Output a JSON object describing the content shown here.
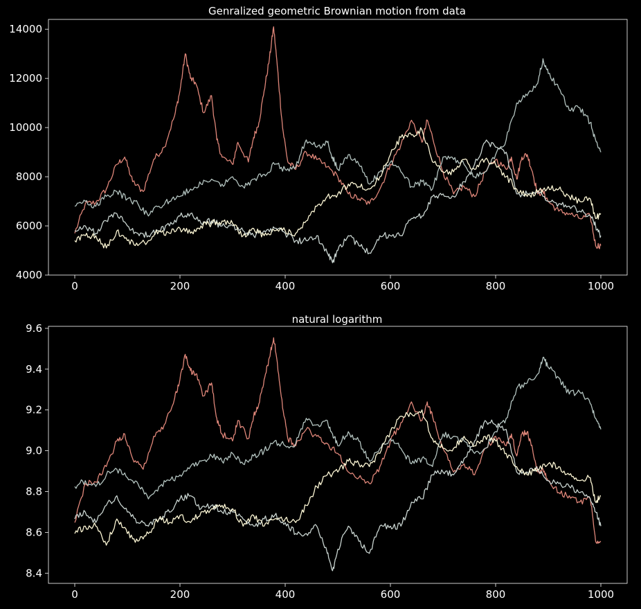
{
  "colors": {
    "background": "#000000",
    "axes": "#ffffff",
    "text": "#ffffff",
    "series_colors": [
      "#e0877a",
      "#b4c4c0",
      "#c9d4d0",
      "#fdf7d5"
    ]
  },
  "chart_data": [
    {
      "type": "line",
      "title": "Genralized geometric Brownian motion from data",
      "xlabel": "",
      "ylabel": "",
      "xlim": [
        -50,
        1050
      ],
      "ylim": [
        4000,
        14400
      ],
      "xticks": [
        0,
        200,
        400,
        600,
        800,
        1000
      ],
      "yticks": [
        4000,
        6000,
        8000,
        10000,
        12000,
        14000
      ],
      "grid": false,
      "legend": "none",
      "series": [
        {
          "color": "#e0877a",
          "x": [
            0,
            20,
            40,
            60,
            80,
            95,
            110,
            130,
            150,
            170,
            190,
            200,
            210,
            220,
            230,
            245,
            260,
            270,
            280,
            300,
            310,
            330,
            340,
            350,
            360,
            370,
            378,
            385,
            395,
            405,
            420,
            440,
            460,
            480,
            500,
            520,
            540,
            560,
            580,
            600,
            620,
            640,
            660,
            670,
            680,
            700,
            720,
            740,
            760,
            780,
            800,
            820,
            830,
            840,
            850,
            860,
            870,
            880,
            890,
            900,
            920,
            940,
            960,
            980,
            990,
            1000
          ],
          "y": [
            5700,
            6900,
            6950,
            7500,
            8500,
            8800,
            7800,
            7400,
            8700,
            9200,
            10500,
            11500,
            13000,
            12000,
            11800,
            10600,
            11300,
            9500,
            8800,
            8500,
            9400,
            8600,
            9600,
            10200,
            11500,
            12800,
            14100,
            12500,
            10000,
            8600,
            8300,
            9000,
            8700,
            8400,
            8000,
            7300,
            7100,
            6900,
            7500,
            8500,
            9300,
            10300,
            9400,
            10300,
            9600,
            8200,
            7300,
            7600,
            7200,
            8200,
            8700,
            8300,
            8800,
            7900,
            8800,
            8900,
            8200,
            7300,
            7400,
            7000,
            6600,
            6500,
            6300,
            6400,
            5200,
            5200
          ]
        },
        {
          "color": "#b4c4c0",
          "x": [
            0,
            20,
            40,
            60,
            80,
            100,
            120,
            140,
            160,
            180,
            200,
            220,
            240,
            260,
            280,
            300,
            320,
            340,
            360,
            380,
            400,
            420,
            440,
            460,
            480,
            490,
            500,
            520,
            540,
            560,
            580,
            600,
            620,
            640,
            660,
            680,
            700,
            720,
            740,
            760,
            780,
            800,
            820,
            840,
            860,
            880,
            890,
            900,
            920,
            940,
            960,
            980,
            990,
            1000
          ],
          "y": [
            6800,
            7000,
            6800,
            7200,
            7400,
            7100,
            6900,
            6400,
            6800,
            7000,
            7200,
            7500,
            7700,
            7900,
            7700,
            8000,
            7600,
            7900,
            8100,
            8500,
            8300,
            8400,
            9500,
            9200,
            9400,
            8800,
            8300,
            8900,
            8500,
            7700,
            8200,
            8600,
            8200,
            7600,
            7800,
            7500,
            8800,
            8700,
            8500,
            8000,
            8200,
            8900,
            9500,
            11000,
            11300,
            11800,
            12800,
            12200,
            11600,
            10700,
            10800,
            10200,
            9500,
            9000
          ]
        },
        {
          "color": "#c9d4d0",
          "x": [
            0,
            20,
            40,
            60,
            80,
            100,
            120,
            140,
            160,
            180,
            200,
            220,
            240,
            260,
            280,
            300,
            320,
            340,
            360,
            380,
            400,
            420,
            440,
            460,
            480,
            490,
            500,
            520,
            540,
            560,
            580,
            600,
            620,
            640,
            660,
            680,
            700,
            720,
            740,
            760,
            780,
            800,
            820,
            840,
            860,
            880,
            900,
            920,
            940,
            960,
            980,
            990,
            1000
          ],
          "y": [
            5800,
            6000,
            5700,
            6200,
            6500,
            6000,
            5700,
            5600,
            5800,
            6000,
            6400,
            6500,
            6100,
            6200,
            6000,
            6000,
            5800,
            5600,
            5800,
            5900,
            5700,
            5400,
            5400,
            5600,
            4900,
            4500,
            5000,
            5600,
            5200,
            4900,
            5600,
            5600,
            5600,
            6300,
            6400,
            7200,
            7300,
            7200,
            7800,
            8500,
            9400,
            9200,
            9000,
            7300,
            7300,
            7400,
            7000,
            6900,
            6800,
            6600,
            6400,
            6000,
            5600
          ]
        },
        {
          "color": "#fdf7d5",
          "x": [
            0,
            20,
            40,
            60,
            80,
            100,
            120,
            140,
            160,
            180,
            200,
            220,
            240,
            260,
            280,
            300,
            320,
            340,
            360,
            380,
            400,
            420,
            440,
            460,
            480,
            500,
            520,
            540,
            560,
            580,
            600,
            620,
            640,
            660,
            680,
            700,
            720,
            740,
            760,
            780,
            800,
            820,
            840,
            860,
            880,
            900,
            920,
            940,
            960,
            980,
            990,
            1000
          ],
          "y": [
            5400,
            5600,
            5600,
            5100,
            5800,
            5400,
            5200,
            5400,
            5800,
            5700,
            5900,
            5700,
            6000,
            6100,
            6200,
            6100,
            5600,
            5900,
            5600,
            5800,
            5800,
            5700,
            6200,
            6800,
            7200,
            7300,
            7700,
            7600,
            7500,
            8000,
            8900,
            9600,
            9700,
            9900,
            8600,
            8200,
            8200,
            8700,
            8300,
            8700,
            8500,
            8000,
            7500,
            7200,
            7400,
            7600,
            7500,
            7200,
            7000,
            7100,
            6300,
            6500
          ]
        }
      ]
    },
    {
      "type": "line",
      "title": "natural logarithm",
      "xlabel": "",
      "ylabel": "",
      "xlim": [
        -50,
        1050
      ],
      "ylim": [
        8.35,
        9.61
      ],
      "xticks": [
        0,
        200,
        400,
        600,
        800,
        1000
      ],
      "yticks": [
        8.4,
        8.6,
        8.8,
        9.0,
        9.2,
        9.4,
        9.6
      ],
      "grid": false,
      "legend": "none",
      "series": [
        {
          "color": "#e0877a",
          "transform": "ln",
          "source_series": 0
        },
        {
          "color": "#b4c4c0",
          "transform": "ln",
          "source_series": 1
        },
        {
          "color": "#c9d4d0",
          "transform": "ln",
          "source_series": 2
        },
        {
          "color": "#fdf7d5",
          "transform": "ln",
          "source_series": 3
        }
      ]
    }
  ]
}
